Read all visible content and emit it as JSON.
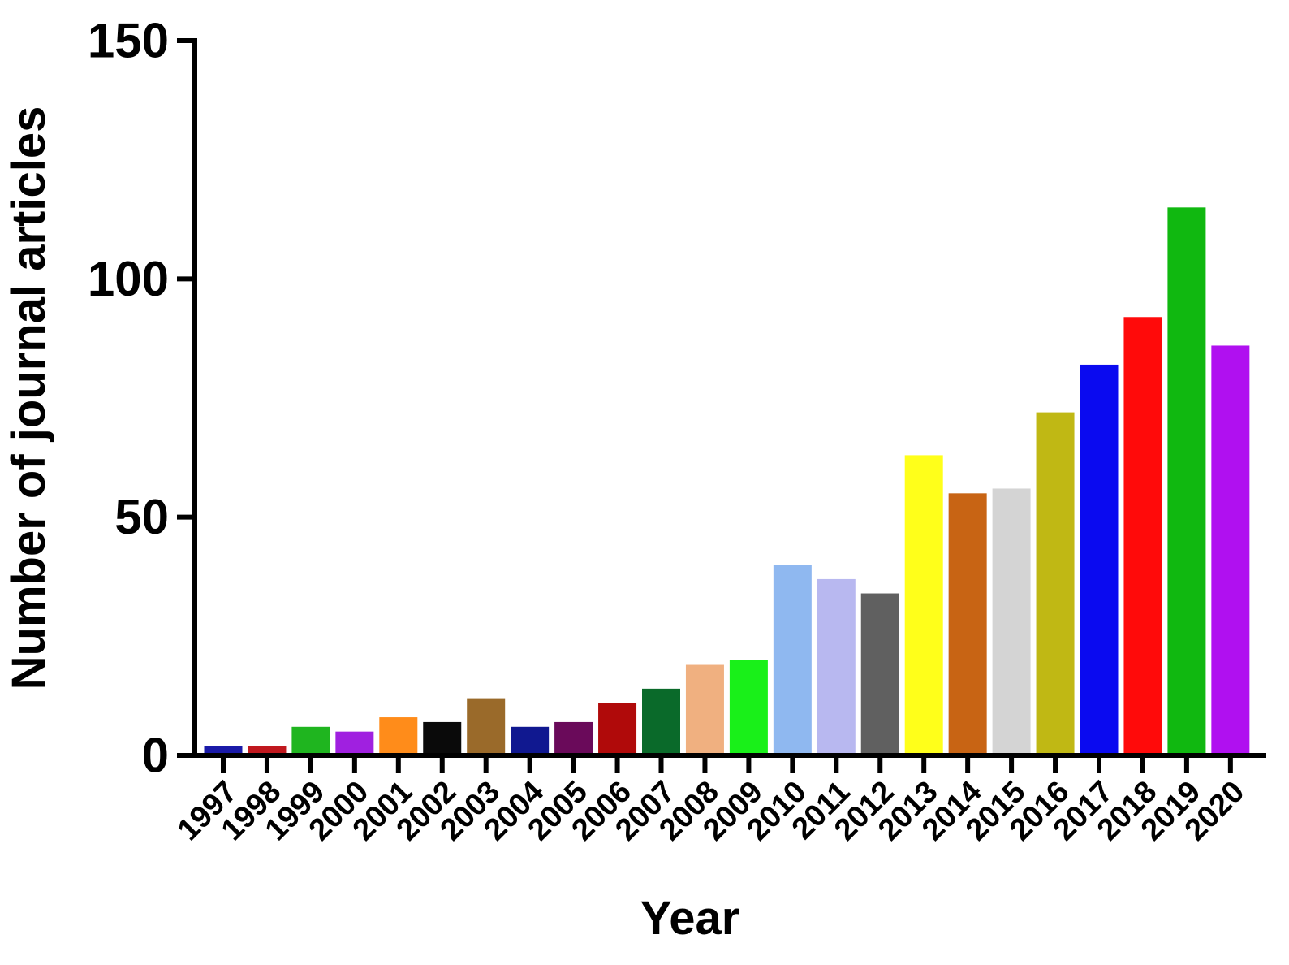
{
  "chart_data": {
    "type": "bar",
    "title": "",
    "xlabel": "Year",
    "ylabel": "Number of journal articles",
    "ylim": [
      0,
      150
    ],
    "yticks": [
      0,
      50,
      100,
      150
    ],
    "categories": [
      "1997",
      "1998",
      "1999",
      "2000",
      "2001",
      "2002",
      "2003",
      "2004",
      "2005",
      "2006",
      "2007",
      "2008",
      "2009",
      "2010",
      "2011",
      "2012",
      "2013",
      "2014",
      "2015",
      "2016",
      "2017",
      "2018",
      "2019",
      "2020"
    ],
    "values": [
      2,
      2,
      6,
      5,
      8,
      7,
      12,
      6,
      7,
      11,
      14,
      19,
      20,
      40,
      37,
      34,
      63,
      55,
      56,
      72,
      82,
      92,
      115,
      86
    ],
    "colors": [
      "#1a1aa8",
      "#c0181e",
      "#1fb51f",
      "#a020e0",
      "#ff8c1a",
      "#0a0a0a",
      "#9a6a2a",
      "#101890",
      "#6a0a5a",
      "#b00a0a",
      "#0a6a2a",
      "#f0b080",
      "#19f019",
      "#8fb8f0",
      "#b8b8f0",
      "#606060",
      "#ffff1a",
      "#c86414",
      "#d4d4d4",
      "#c0b814",
      "#0a0af0",
      "#ff0a0a",
      "#10b810",
      "#b010f0"
    ],
    "grid": false,
    "legend": "none"
  }
}
